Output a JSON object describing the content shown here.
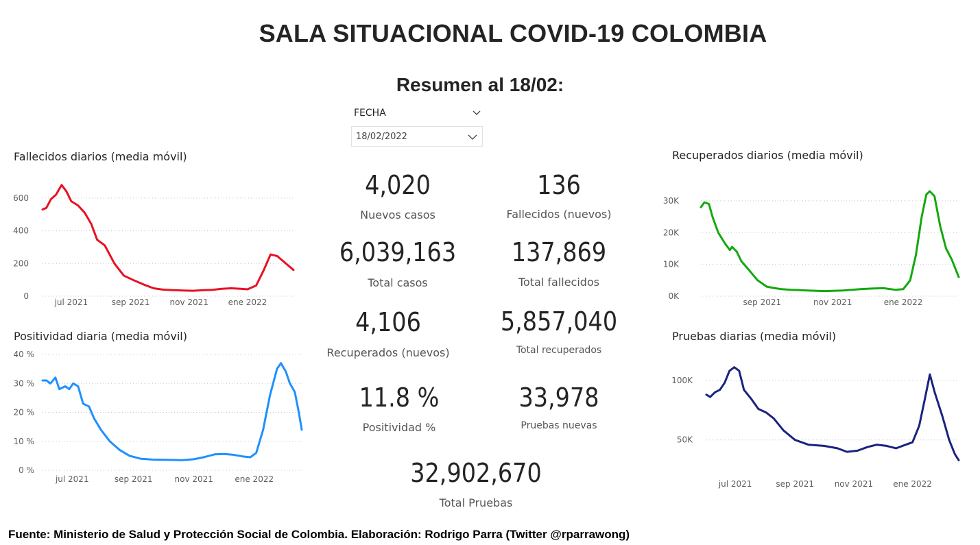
{
  "title": "SALA SITUACIONAL COVID-19 COLOMBIA",
  "subtitle": "Resumen al 18/02:",
  "slicer": {
    "label": "FECHA",
    "value": "18/02/2022"
  },
  "kpis": {
    "nuevos_casos": {
      "value": "4,020",
      "label": "Nuevos casos"
    },
    "fallecidos_nuevos": {
      "value": "136",
      "label": "Fallecidos (nuevos)"
    },
    "total_casos": {
      "value": "6,039,163",
      "label": "Total casos"
    },
    "total_fallecidos": {
      "value": "137,869",
      "label": "Total fallecidos"
    },
    "recuperados_nuevos": {
      "value": "4,106",
      "label": "Recuperados (nuevos)"
    },
    "total_recuperados": {
      "value": "5,857,040",
      "label": "Total recuperados"
    },
    "positividad": {
      "value": "11.8 %",
      "label": "Positividad %"
    },
    "pruebas_nuevas": {
      "value": "33,978",
      "label": "Pruebas nuevas"
    },
    "total_pruebas": {
      "value": "32,902,670",
      "label": "Total Pruebas"
    }
  },
  "footer": "Fuente: Ministerio de Salud y Protección Social de Colombia. Elaboración: Rodrigo Parra (Twitter @rparrawong)",
  "chart_data": [
    {
      "id": "fallecidos",
      "type": "line",
      "title": "Fallecidos diarios (media móvil)",
      "color": "#e81123",
      "xlabel": "",
      "ylabel": "",
      "ylim": [
        0,
        700
      ],
      "xlim": [
        "2021-06-01",
        "2022-02-18"
      ],
      "y_ticks": [
        0,
        200,
        400,
        600
      ],
      "y_tick_labels": [
        "0",
        "200",
        "400",
        "600"
      ],
      "x_ticks": [
        "2021-07-01",
        "2021-09-01",
        "2021-11-01",
        "2022-01-01"
      ],
      "x_tick_labels": [
        "jul 2021",
        "sep 2021",
        "nov 2021",
        "ene 2022"
      ],
      "grid": true,
      "points": [
        [
          "2021-06-01",
          530
        ],
        [
          "2021-06-05",
          540
        ],
        [
          "2021-06-10",
          595
        ],
        [
          "2021-06-15",
          620
        ],
        [
          "2021-06-21",
          680
        ],
        [
          "2021-06-26",
          640
        ],
        [
          "2021-07-01",
          580
        ],
        [
          "2021-07-08",
          555
        ],
        [
          "2021-07-15",
          510
        ],
        [
          "2021-07-22",
          440
        ],
        [
          "2021-07-28",
          345
        ],
        [
          "2021-08-05",
          310
        ],
        [
          "2021-08-15",
          200
        ],
        [
          "2021-08-25",
          125
        ],
        [
          "2021-09-05",
          95
        ],
        [
          "2021-09-15",
          70
        ],
        [
          "2021-09-25",
          48
        ],
        [
          "2021-10-05",
          40
        ],
        [
          "2021-10-15",
          37
        ],
        [
          "2021-10-25",
          35
        ],
        [
          "2021-11-05",
          33
        ],
        [
          "2021-11-15",
          36
        ],
        [
          "2021-11-25",
          38
        ],
        [
          "2021-12-05",
          45
        ],
        [
          "2021-12-15",
          48
        ],
        [
          "2021-12-25",
          45
        ],
        [
          "2022-01-01",
          42
        ],
        [
          "2022-01-10",
          65
        ],
        [
          "2022-01-18",
          160
        ],
        [
          "2022-01-25",
          255
        ],
        [
          "2022-02-01",
          245
        ],
        [
          "2022-02-08",
          210
        ],
        [
          "2022-02-18",
          160
        ]
      ]
    },
    {
      "id": "positividad",
      "type": "line",
      "title": "Positividad diaria (media móvil)",
      "color": "#1e90ff",
      "xlabel": "",
      "ylabel": "",
      "ylim": [
        0,
        40
      ],
      "xlim": [
        "2021-06-01",
        "2022-02-18"
      ],
      "y_ticks": [
        0,
        10,
        20,
        30,
        40
      ],
      "y_tick_labels": [
        "0 %",
        "10 %",
        "20 %",
        "30 %",
        "40 %"
      ],
      "x_ticks": [
        "2021-07-01",
        "2021-09-01",
        "2021-11-01",
        "2022-01-01"
      ],
      "x_tick_labels": [
        "jul 2021",
        "sep 2021",
        "nov 2021",
        "ene 2022"
      ],
      "grid": true,
      "points": [
        [
          "2021-06-01",
          31
        ],
        [
          "2021-06-05",
          31
        ],
        [
          "2021-06-09",
          30
        ],
        [
          "2021-06-14",
          32
        ],
        [
          "2021-06-18",
          28
        ],
        [
          "2021-06-24",
          29
        ],
        [
          "2021-06-28",
          28
        ],
        [
          "2021-07-02",
          30
        ],
        [
          "2021-07-07",
          29
        ],
        [
          "2021-07-12",
          23
        ],
        [
          "2021-07-18",
          22
        ],
        [
          "2021-07-23",
          18
        ],
        [
          "2021-07-30",
          14
        ],
        [
          "2021-08-08",
          10
        ],
        [
          "2021-08-18",
          7
        ],
        [
          "2021-08-28",
          5
        ],
        [
          "2021-09-08",
          4
        ],
        [
          "2021-09-20",
          3.7
        ],
        [
          "2021-10-05",
          3.6
        ],
        [
          "2021-10-20",
          3.5
        ],
        [
          "2021-11-01",
          3.8
        ],
        [
          "2021-11-12",
          4.6
        ],
        [
          "2021-11-22",
          5.5
        ],
        [
          "2021-12-01",
          5.6
        ],
        [
          "2021-12-10",
          5.4
        ],
        [
          "2021-12-20",
          4.8
        ],
        [
          "2021-12-28",
          4.5
        ],
        [
          "2022-01-03",
          6
        ],
        [
          "2022-01-10",
          14
        ],
        [
          "2022-01-17",
          26
        ],
        [
          "2022-01-24",
          35
        ],
        [
          "2022-01-28",
          37
        ],
        [
          "2022-02-02",
          34
        ],
        [
          "2022-02-06",
          30
        ],
        [
          "2022-02-11",
          27
        ],
        [
          "2022-02-15",
          20
        ],
        [
          "2022-02-18",
          14
        ]
      ]
    },
    {
      "id": "recuperados",
      "type": "line",
      "title": "Recuperados diarios (media móvil)",
      "color": "#13a810",
      "xlabel": "",
      "ylabel": "",
      "ylim": [
        0,
        33000
      ],
      "xlim": [
        "2021-07-10",
        "2022-02-18"
      ],
      "y_ticks": [
        0,
        10000,
        20000,
        30000
      ],
      "y_tick_labels": [
        "0K",
        "10K",
        "20K",
        "30K"
      ],
      "x_ticks": [
        "2021-09-01",
        "2021-11-01",
        "2022-01-01"
      ],
      "x_tick_labels": [
        "sep 2021",
        "nov 2021",
        "ene 2022"
      ],
      "grid": true,
      "points": [
        [
          "2021-07-10",
          28000
        ],
        [
          "2021-07-13",
          29500
        ],
        [
          "2021-07-17",
          29000
        ],
        [
          "2021-07-20",
          25000
        ],
        [
          "2021-07-25",
          20000
        ],
        [
          "2021-07-31",
          16500
        ],
        [
          "2021-08-04",
          14500
        ],
        [
          "2021-08-06",
          15500
        ],
        [
          "2021-08-10",
          14000
        ],
        [
          "2021-08-14",
          11000
        ],
        [
          "2021-08-20",
          8500
        ],
        [
          "2021-08-28",
          5000
        ],
        [
          "2021-09-05",
          3000
        ],
        [
          "2021-09-12",
          2500
        ],
        [
          "2021-09-18",
          2200
        ],
        [
          "2021-09-26",
          2000
        ],
        [
          "2021-10-10",
          1800
        ],
        [
          "2021-10-25",
          1600
        ],
        [
          "2021-11-10",
          1800
        ],
        [
          "2021-11-25",
          2200
        ],
        [
          "2021-12-05",
          2400
        ],
        [
          "2021-12-15",
          2500
        ],
        [
          "2021-12-25",
          2000
        ],
        [
          "2022-01-01",
          2200
        ],
        [
          "2022-01-07",
          5000
        ],
        [
          "2022-01-12",
          13000
        ],
        [
          "2022-01-17",
          25000
        ],
        [
          "2022-01-21",
          32000
        ],
        [
          "2022-01-24",
          33000
        ],
        [
          "2022-01-28",
          31500
        ],
        [
          "2022-02-02",
          22000
        ],
        [
          "2022-02-07",
          15000
        ],
        [
          "2022-02-12",
          11500
        ],
        [
          "2022-02-18",
          6000
        ]
      ]
    },
    {
      "id": "pruebas",
      "type": "line",
      "title": "Pruebas diarias (media móvil)",
      "color": "#1a237e",
      "xlabel": "",
      "ylabel": "",
      "ylim": [
        28000,
        120000
      ],
      "xlim": [
        "2021-06-01",
        "2022-02-18"
      ],
      "y_ticks": [
        50000,
        100000
      ],
      "y_tick_labels": [
        "50K",
        "100K"
      ],
      "x_ticks": [
        "2021-07-01",
        "2021-09-01",
        "2021-11-01",
        "2022-01-01"
      ],
      "x_tick_labels": [
        "jul 2021",
        "sep 2021",
        "nov 2021",
        "ene 2022"
      ],
      "grid": true,
      "points": [
        [
          "2021-06-01",
          88000
        ],
        [
          "2021-06-05",
          86000
        ],
        [
          "2021-06-10",
          90000
        ],
        [
          "2021-06-15",
          92000
        ],
        [
          "2021-06-20",
          98000
        ],
        [
          "2021-06-25",
          108000
        ],
        [
          "2021-06-30",
          111000
        ],
        [
          "2021-07-05",
          108000
        ],
        [
          "2021-07-10",
          92000
        ],
        [
          "2021-07-18",
          84000
        ],
        [
          "2021-07-25",
          76000
        ],
        [
          "2021-08-02",
          73000
        ],
        [
          "2021-08-10",
          68000
        ],
        [
          "2021-08-20",
          58000
        ],
        [
          "2021-09-01",
          50000
        ],
        [
          "2021-09-15",
          46000
        ],
        [
          "2021-10-01",
          45000
        ],
        [
          "2021-10-15",
          43000
        ],
        [
          "2021-10-25",
          40000
        ],
        [
          "2021-11-05",
          41000
        ],
        [
          "2021-11-15",
          44000
        ],
        [
          "2021-11-25",
          46000
        ],
        [
          "2021-12-05",
          45000
        ],
        [
          "2021-12-15",
          43000
        ],
        [
          "2021-12-25",
          46000
        ],
        [
          "2022-01-01",
          48000
        ],
        [
          "2022-01-08",
          62000
        ],
        [
          "2022-01-14",
          85000
        ],
        [
          "2022-01-19",
          105000
        ],
        [
          "2022-01-24",
          90000
        ],
        [
          "2022-02-01",
          70000
        ],
        [
          "2022-02-08",
          50000
        ],
        [
          "2022-02-14",
          38000
        ],
        [
          "2022-02-18",
          33000
        ]
      ]
    }
  ]
}
